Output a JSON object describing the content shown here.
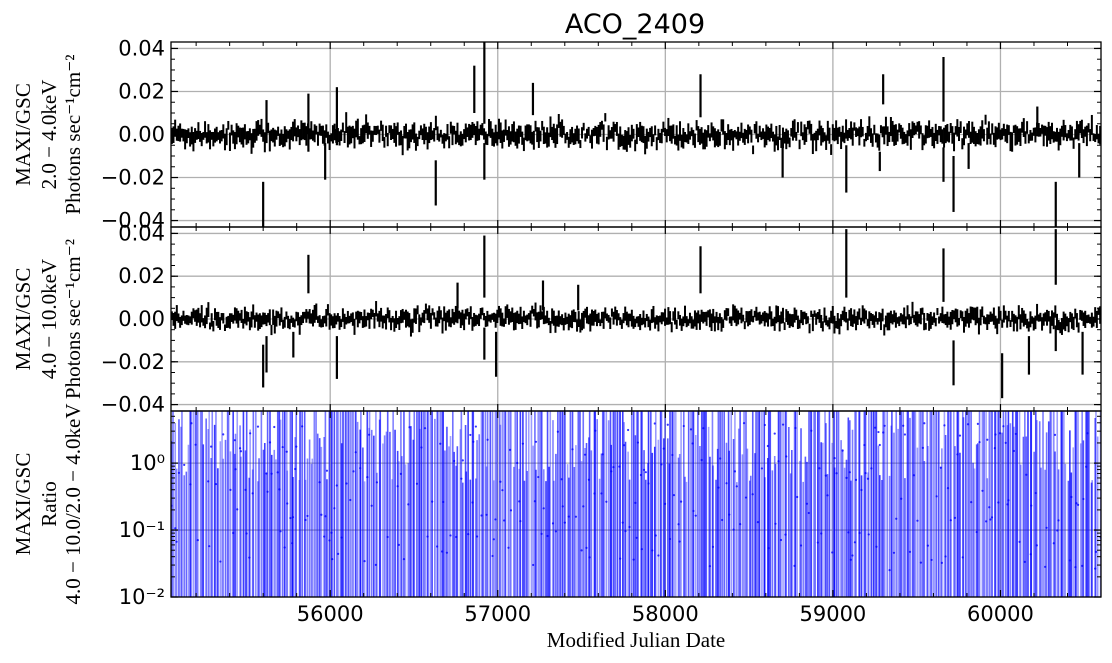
{
  "chart_data": {
    "type": "errorbar-lightcurve",
    "title": "ACO_2409",
    "xlabel": "Modified Julian Date",
    "xlim": [
      55050,
      60600
    ],
    "x_ticks": [
      56000,
      57000,
      58000,
      59000,
      60000
    ],
    "grid": true,
    "panels": [
      {
        "name": "MAXI/GSC 2.0-4.0keV",
        "ylabel_lines": [
          "MAXI/GSC",
          "2.0 − 4.0keV",
          "Photons sec⁻¹cm⁻²"
        ],
        "scale": "linear",
        "ylim": [
          -0.043,
          0.043
        ],
        "y_ticks": [
          "0.04",
          "0.02",
          "0.00",
          "−0.02",
          "−0.04"
        ],
        "y_tick_values": [
          0.04,
          0.02,
          0.0,
          -0.02,
          -0.04
        ],
        "color": "#000000",
        "baseline_sigma": 0.0035,
        "spikes": [
          {
            "x": 55600,
            "lo": -0.043,
            "hi": -0.022
          },
          {
            "x": 55620,
            "lo": -0.004,
            "hi": 0.016
          },
          {
            "x": 55870,
            "lo": -0.008,
            "hi": 0.019
          },
          {
            "x": 55970,
            "lo": -0.021,
            "hi": -0.004
          },
          {
            "x": 56040,
            "lo": -0.005,
            "hi": 0.022
          },
          {
            "x": 56630,
            "lo": -0.033,
            "hi": -0.012
          },
          {
            "x": 56860,
            "lo": 0.01,
            "hi": 0.032
          },
          {
            "x": 56920,
            "lo": 0.005,
            "hi": 0.043
          },
          {
            "x": 56920,
            "lo": -0.021,
            "hi": -0.004
          },
          {
            "x": 57210,
            "lo": 0.009,
            "hi": 0.024
          },
          {
            "x": 58210,
            "lo": 0.008,
            "hi": 0.028
          },
          {
            "x": 58700,
            "lo": -0.02,
            "hi": -0.004
          },
          {
            "x": 59080,
            "lo": -0.027,
            "hi": -0.005
          },
          {
            "x": 59300,
            "lo": 0.014,
            "hi": 0.028
          },
          {
            "x": 59280,
            "lo": -0.017,
            "hi": -0.008
          },
          {
            "x": 59660,
            "lo": 0.006,
            "hi": 0.036
          },
          {
            "x": 59660,
            "lo": -0.022,
            "hi": -0.006
          },
          {
            "x": 59720,
            "lo": -0.036,
            "hi": -0.01
          },
          {
            "x": 60330,
            "lo": -0.043,
            "hi": -0.022
          },
          {
            "x": 60470,
            "lo": -0.02,
            "hi": -0.004
          },
          {
            "x": 60220,
            "lo": 0.002,
            "hi": 0.013
          },
          {
            "x": 59810,
            "lo": -0.016,
            "hi": -0.004
          }
        ]
      },
      {
        "name": "MAXI/GSC 4.0-10.0keV",
        "ylabel_lines": [
          "MAXI/GSC",
          "4.0 − 10.0keV",
          "Photons sec⁻¹cm⁻²"
        ],
        "scale": "linear",
        "ylim": [
          -0.043,
          0.043
        ],
        "y_ticks": [
          "0.04",
          "0.02",
          "0.00",
          "−0.02",
          "−0.04"
        ],
        "y_tick_values": [
          0.04,
          0.02,
          0.0,
          -0.02,
          -0.04
        ],
        "color": "#000000",
        "baseline_sigma": 0.003,
        "spikes": [
          {
            "x": 55600,
            "lo": -0.032,
            "hi": -0.012
          },
          {
            "x": 55620,
            "lo": -0.025,
            "hi": -0.008
          },
          {
            "x": 55870,
            "lo": 0.012,
            "hi": 0.03
          },
          {
            "x": 55780,
            "lo": -0.018,
            "hi": -0.006
          },
          {
            "x": 56040,
            "lo": -0.028,
            "hi": -0.008
          },
          {
            "x": 56760,
            "lo": 0.005,
            "hi": 0.017
          },
          {
            "x": 56920,
            "lo": 0.01,
            "hi": 0.039
          },
          {
            "x": 56920,
            "lo": -0.019,
            "hi": -0.004
          },
          {
            "x": 56990,
            "lo": -0.027,
            "hi": -0.006
          },
          {
            "x": 57270,
            "lo": 0.004,
            "hi": 0.018
          },
          {
            "x": 57480,
            "lo": 0.004,
            "hi": 0.016
          },
          {
            "x": 58210,
            "lo": 0.012,
            "hi": 0.034
          },
          {
            "x": 59080,
            "lo": 0.01,
            "hi": 0.042
          },
          {
            "x": 59660,
            "lo": 0.008,
            "hi": 0.033
          },
          {
            "x": 59720,
            "lo": -0.031,
            "hi": -0.01
          },
          {
            "x": 60010,
            "lo": -0.037,
            "hi": -0.016
          },
          {
            "x": 60170,
            "lo": -0.026,
            "hi": -0.008
          },
          {
            "x": 60330,
            "lo": 0.016,
            "hi": 0.042
          },
          {
            "x": 60330,
            "lo": -0.015,
            "hi": -0.003
          },
          {
            "x": 60490,
            "lo": -0.026,
            "hi": -0.006
          }
        ]
      },
      {
        "name": "MAXI/GSC Ratio 4.0-10.0/2.0-4.0keV",
        "ylabel_lines": [
          "MAXI/GSC",
          "Ratio",
          "4.0 − 10.0/2.0 − 4.0keV"
        ],
        "scale": "log",
        "ylim": [
          0.01,
          6
        ],
        "y_ticks": [
          "10⁰",
          "10⁻¹",
          "10⁻²"
        ],
        "y_tick_values": [
          1,
          0.1,
          0.01
        ],
        "color": "#0000ff"
      }
    ]
  }
}
